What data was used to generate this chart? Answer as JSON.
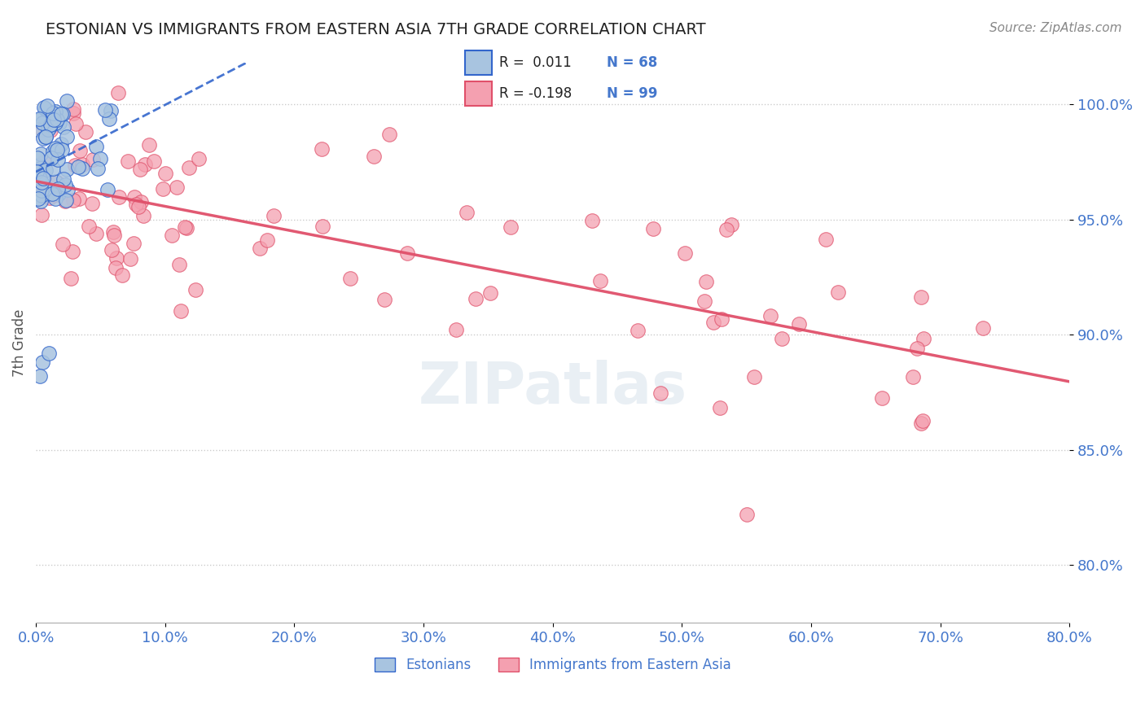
{
  "title": "ESTONIAN VS IMMIGRANTS FROM EASTERN ASIA 7TH GRADE CORRELATION CHART",
  "source": "Source: ZipAtlas.com",
  "ylabel": "7th Grade",
  "legend_blue_r": "R =  0.011",
  "legend_blue_n": "N = 68",
  "legend_pink_r": "R = -0.198",
  "legend_pink_n": "N = 99",
  "blue_color": "#a8c4e0",
  "pink_color": "#f4a0b0",
  "blue_line_color": "#3366cc",
  "pink_line_color": "#e0506a",
  "axis_label_color": "#4477cc",
  "ytick_labels": [
    "80.0%",
    "85.0%",
    "90.0%",
    "95.0%",
    "100.0%"
  ],
  "ytick_values": [
    0.8,
    0.85,
    0.9,
    0.95,
    1.0
  ],
  "xlim": [
    0.0,
    0.8
  ],
  "ylim": [
    0.775,
    1.018
  ],
  "background_color": "#ffffff"
}
